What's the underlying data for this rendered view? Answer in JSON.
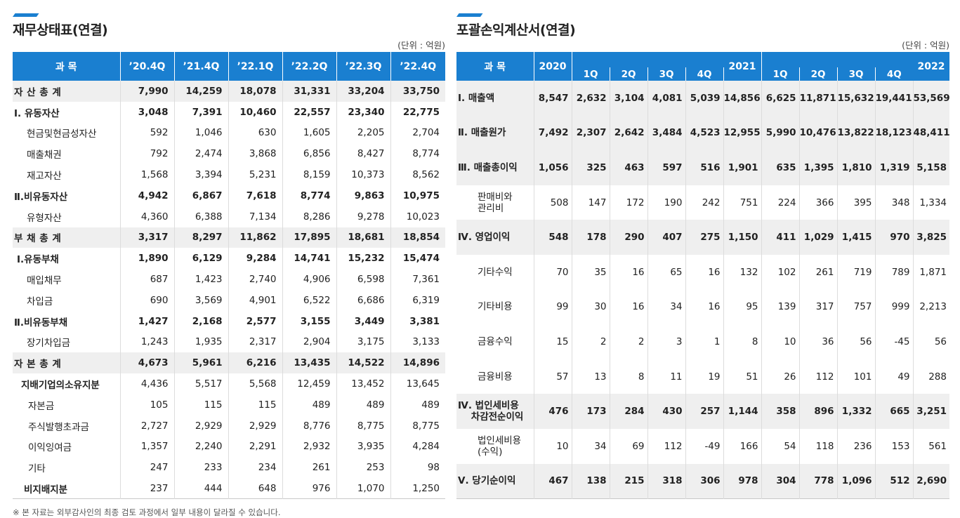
{
  "balance_sheet": {
    "title": "재무상태표(연결)",
    "unit": "(단위 : 억원)",
    "header_subject": "과 목",
    "columns": [
      "’20.4Q",
      "’21.4Q",
      "’22.1Q",
      "’22.2Q",
      "’22.3Q",
      "’22.4Q"
    ],
    "rows": [
      {
        "label": "자 산 총 계",
        "values": [
          "7,990",
          "14,259",
          "18,078",
          "31,331",
          "33,204",
          "33,750"
        ],
        "style": "total"
      },
      {
        "label": "Ⅰ. 유동자산",
        "values": [
          "3,048",
          "7,391",
          "10,460",
          "22,557",
          "23,340",
          "22,775"
        ],
        "style": "section"
      },
      {
        "label": "현금및현금성자산",
        "values": [
          "592",
          "1,046",
          "630",
          "1,605",
          "2,205",
          "2,704"
        ],
        "style": "item"
      },
      {
        "label": "매출채권",
        "values": [
          "792",
          "2,474",
          "3,868",
          "6,856",
          "8,427",
          "8,774"
        ],
        "style": "item"
      },
      {
        "label": "재고자산",
        "values": [
          "1,568",
          "3,394",
          "5,231",
          "8,159",
          "10,373",
          "8,562"
        ],
        "style": "item"
      },
      {
        "label": "Ⅱ.비유동자산",
        "values": [
          "4,942",
          "6,867",
          "7,618",
          "8,774",
          "9,863",
          "10,975"
        ],
        "style": "section"
      },
      {
        "label": "유형자산",
        "values": [
          "4,360",
          "6,388",
          "7,134",
          "8,286",
          "9,278",
          "10,023"
        ],
        "style": "item"
      },
      {
        "label": "부 채 총 계",
        "values": [
          "3,317",
          "8,297",
          "11,862",
          "17,895",
          "18,681",
          "18,854"
        ],
        "style": "total"
      },
      {
        "label": "Ⅰ.유동부채",
        "values": [
          "1,890",
          "6,129",
          "9,284",
          "14,741",
          "15,232",
          "15,474"
        ],
        "style": "section2"
      },
      {
        "label": "매입채무",
        "values": [
          "687",
          "1,423",
          "2,740",
          "4,906",
          "6,598",
          "7,361"
        ],
        "style": "item"
      },
      {
        "label": "차입금",
        "values": [
          "690",
          "3,569",
          "4,901",
          "6,522",
          "6,686",
          "6,319"
        ],
        "style": "item"
      },
      {
        "label": "Ⅱ.비유동부채",
        "values": [
          "1,427",
          "2,168",
          "2,577",
          "3,155",
          "3,449",
          "3,381"
        ],
        "style": "section"
      },
      {
        "label": "장기차입금",
        "values": [
          "1,243",
          "1,935",
          "2,317",
          "2,904",
          "3,175",
          "3,133"
        ],
        "style": "item"
      },
      {
        "label": "자 본 총 계",
        "values": [
          "4,673",
          "5,961",
          "6,216",
          "13,435",
          "14,522",
          "14,896"
        ],
        "style": "total"
      },
      {
        "label": "지배기업의소유지분",
        "values": [
          "4,436",
          "5,517",
          "5,568",
          "12,459",
          "13,452",
          "13,645"
        ],
        "style": "sub-bold"
      },
      {
        "label": "자본금",
        "values": [
          "105",
          "115",
          "115",
          "489",
          "489",
          "489"
        ],
        "style": "item2"
      },
      {
        "label": "주식발행초과금",
        "values": [
          "2,727",
          "2,929",
          "2,929",
          "8,776",
          "8,775",
          "8,775"
        ],
        "style": "item2"
      },
      {
        "label": "이익잉여금",
        "values": [
          "1,357",
          "2,240",
          "2,291",
          "2,932",
          "3,935",
          "4,284"
        ],
        "style": "item2"
      },
      {
        "label": "기타",
        "values": [
          "247",
          "233",
          "234",
          "261",
          "253",
          "98"
        ],
        "style": "item2"
      },
      {
        "label": "비지배지분",
        "values": [
          "237",
          "444",
          "648",
          "976",
          "1,070",
          "1,250"
        ],
        "style": "sub-bold-val"
      }
    ]
  },
  "income_statement": {
    "title": "포괄손익계산서(연결)",
    "unit": "(단위 : 억원)",
    "header_subject": "과 목",
    "year_2020": "2020",
    "year_2021": "2021",
    "year_2022": "2022",
    "quarters": [
      "1Q",
      "2Q",
      "3Q",
      "4Q"
    ],
    "rows": [
      {
        "label": "Ⅰ. 매출액",
        "values": [
          "8,547",
          "2,632",
          "3,104",
          "4,081",
          "5,039",
          "14,856",
          "6,625",
          "11,871",
          "15,632",
          "19,441",
          "53,569"
        ],
        "style": "bold"
      },
      {
        "label": "Ⅱ. 매출원가",
        "values": [
          "7,492",
          "2,307",
          "2,642",
          "3,484",
          "4,523",
          "12,955",
          "5,990",
          "10,476",
          "13,822",
          "18,123",
          "48,411"
        ],
        "style": "bold"
      },
      {
        "label": "Ⅲ. 매출총이익",
        "values": [
          "1,056",
          "325",
          "463",
          "597",
          "516",
          "1,901",
          "635",
          "1,395",
          "1,810",
          "1,319",
          "5,158"
        ],
        "style": "bold"
      },
      {
        "label": "판매비와\n관리비",
        "values": [
          "508",
          "147",
          "172",
          "190",
          "242",
          "751",
          "224",
          "366",
          "395",
          "348",
          "1,334"
        ],
        "style": "item"
      },
      {
        "label": "Ⅳ. 영업이익",
        "values": [
          "548",
          "178",
          "290",
          "407",
          "275",
          "1,150",
          "411",
          "1,029",
          "1,415",
          "970",
          "3,825"
        ],
        "style": "bold"
      },
      {
        "label": "기타수익",
        "values": [
          "70",
          "35",
          "16",
          "65",
          "16",
          "132",
          "102",
          "261",
          "719",
          "789",
          "1,871"
        ],
        "style": "item"
      },
      {
        "label": "기타비용",
        "values": [
          "99",
          "30",
          "16",
          "34",
          "16",
          "95",
          "139",
          "317",
          "757",
          "999",
          "2,213"
        ],
        "style": "item"
      },
      {
        "label": "금융수익",
        "values": [
          "15",
          "2",
          "2",
          "3",
          "1",
          "8",
          "10",
          "36",
          "56",
          "-45",
          "56"
        ],
        "style": "item"
      },
      {
        "label": "금융비용",
        "values": [
          "57",
          "13",
          "8",
          "11",
          "19",
          "51",
          "26",
          "112",
          "101",
          "49",
          "288"
        ],
        "style": "item"
      },
      {
        "label": "Ⅳ. 법인세비용\n    차감전순이익",
        "values": [
          "476",
          "173",
          "284",
          "430",
          "257",
          "1,144",
          "358",
          "896",
          "1,332",
          "665",
          "3,251"
        ],
        "style": "bold"
      },
      {
        "label": "법인세비용\n(수익)",
        "values": [
          "10",
          "34",
          "69",
          "112",
          "-49",
          "166",
          "54",
          "118",
          "236",
          "153",
          "561"
        ],
        "style": "item"
      },
      {
        "label": "Ⅴ. 당기순이익",
        "values": [
          "467",
          "138",
          "215",
          "318",
          "306",
          "978",
          "304",
          "778",
          "1,096",
          "512",
          "2,690"
        ],
        "style": "bold"
      }
    ]
  },
  "footnote": "※ 본 자료는 외부감사인의 최종 검토 과정에서 일부 내용이 달라질 수 있습니다.",
  "colors": {
    "header_blue": "#1a7fd0",
    "shade_gray": "#efefef"
  }
}
